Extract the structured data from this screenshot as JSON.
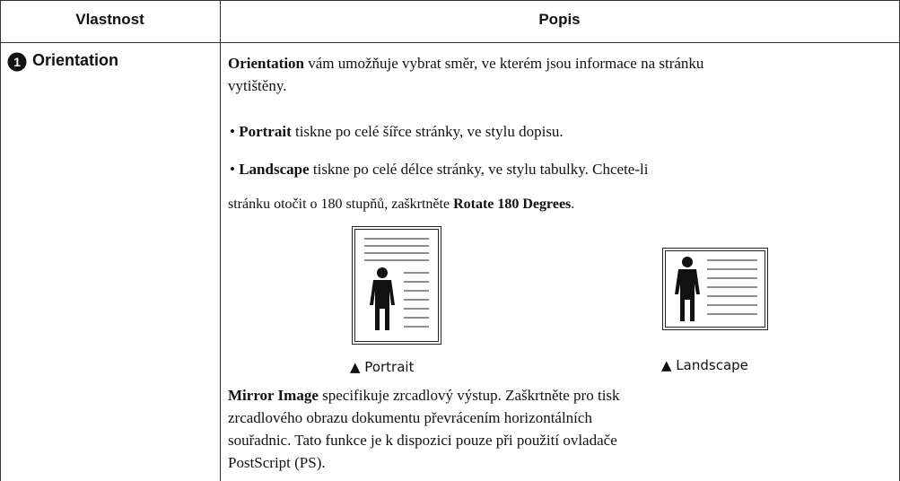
{
  "table": {
    "header": [
      "Vlastnost",
      "Popis"
    ],
    "rows": [
      {
        "marker": "1",
        "property": "Orientation",
        "paragraphs": [
          [
            "Orientation",
            " vám umožňuje vybrat směr, ve kterém jsou informace na stránku vytištěny."
          ],
          [
            "• ",
            "Portrait",
            " tiskne po celé šířce stránky, ve stylu dopisu."
          ],
          [
            "• ",
            "Landscape",
            " tiskne po celé délce stránky, ve stylu tabulky. Chcete-li"
          ],
          [
            "stránku otočit o 180 stupňů, zaškrtněte ",
            "Rotate 180 Degrees",
            "."
          ]
        ],
        "figures": [
          {
            "caption": "▲ Portrait"
          },
          {
            "caption": "▲ Landscape"
          }
        ],
        "closing": [
          "Mirror Image",
          " specifikuje zrcadlový výstup. Zaškrtněte pro tisk zrcadlového obrazu dokumentu převrácením horizontálních souřadnic. Tato funkce je k dispozici pouze při použití ovladače PostScript (PS)."
        ]
      }
    ]
  }
}
